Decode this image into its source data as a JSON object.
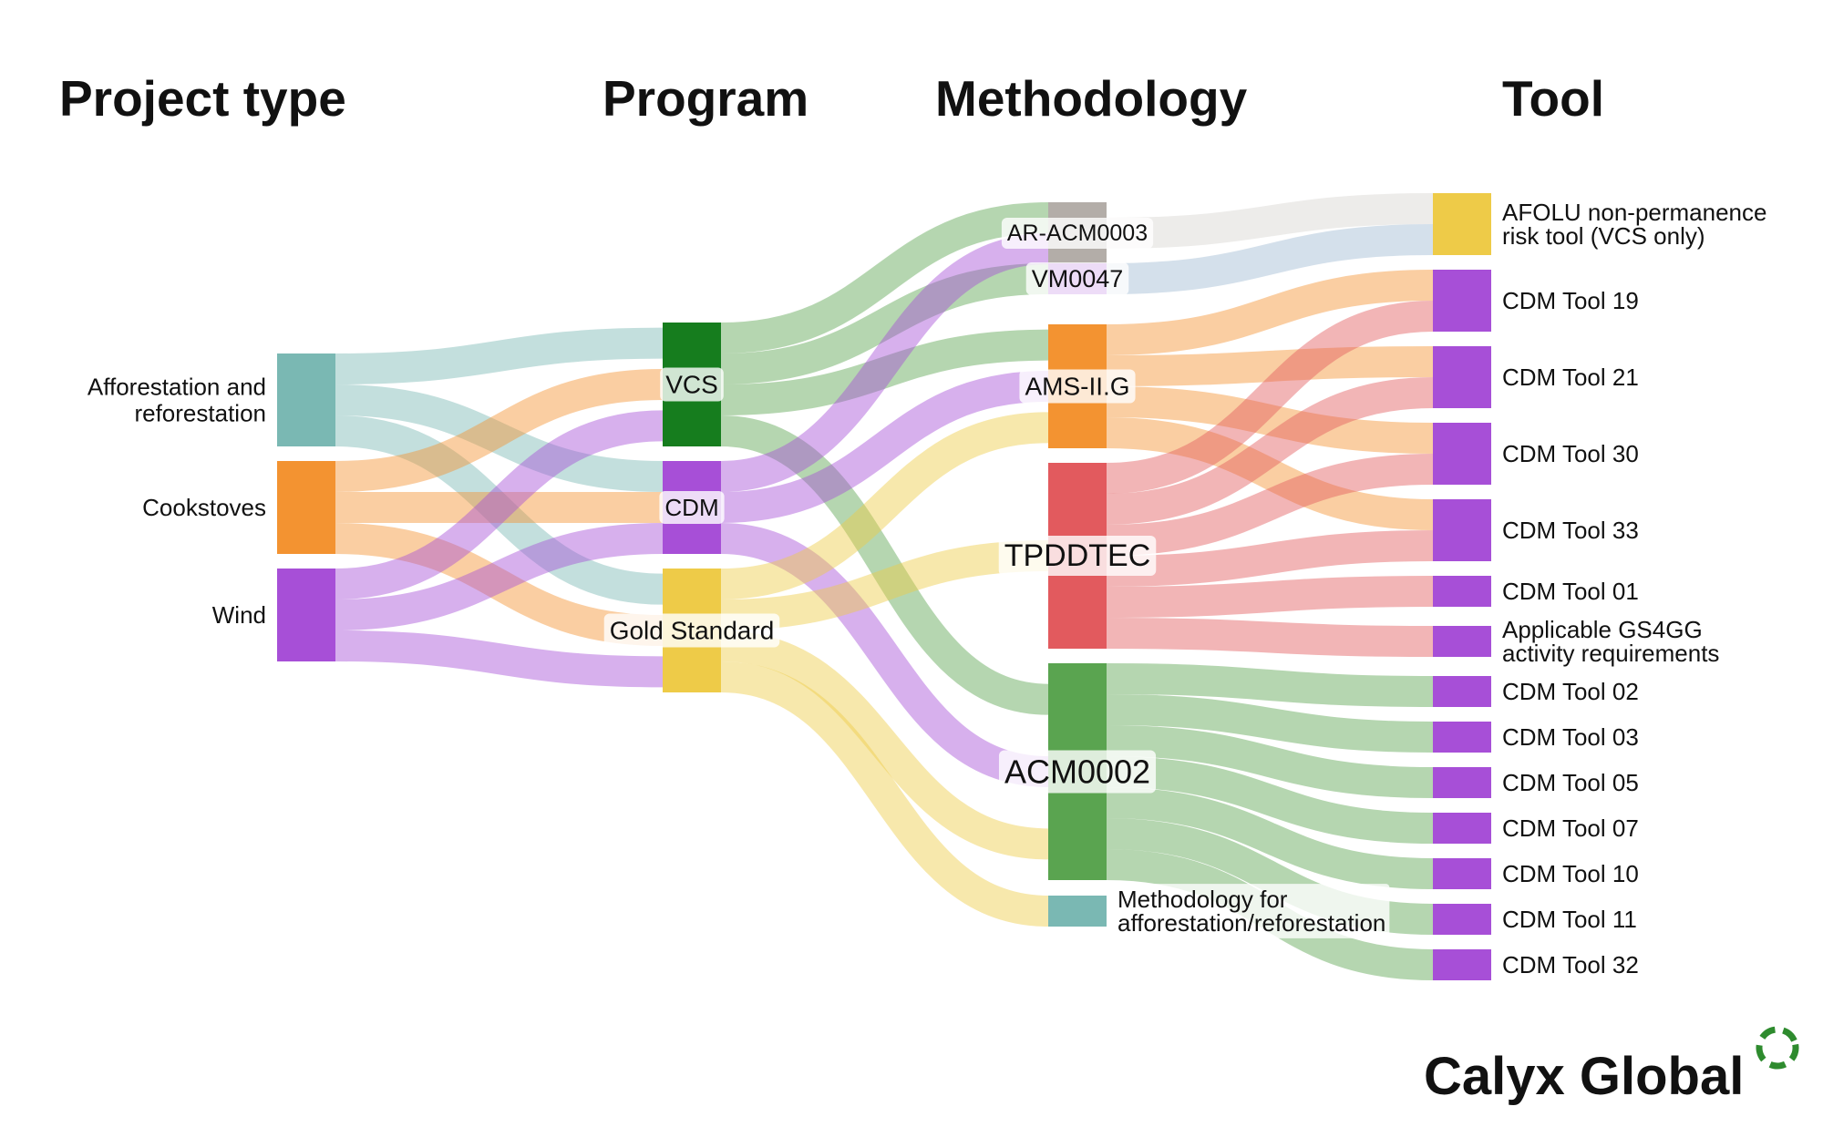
{
  "columns": [
    "Project type",
    "Program",
    "Methodology",
    "Tool"
  ],
  "brand": {
    "name": "Calyx Global",
    "logo_icon": "dashed-circle-logo-icon",
    "logo_color": "#2e8b2e"
  },
  "colors": {
    "teal": "#7ab8b3",
    "orange": "#f39331",
    "purple": "#a74fd7",
    "green_dark": "#167d1e",
    "gold": "#eecb48",
    "gray": "#b3ada8",
    "red": "#e25a5e",
    "green": "#5aa450",
    "link_gray": "#d8d4d1",
    "link_blue": "#9fbad3"
  },
  "chart_data": {
    "type": "sankey",
    "nodes": [
      {
        "id": "aff",
        "label": "Afforestation and reforestation",
        "lines": [
          "Afforestation and",
          "reforestation"
        ],
        "column": 0,
        "color": "#7ab8b3"
      },
      {
        "id": "cook",
        "label": "Cookstoves",
        "lines": [
          "Cookstoves"
        ],
        "column": 0,
        "color": "#f39331"
      },
      {
        "id": "wind",
        "label": "Wind",
        "lines": [
          "Wind"
        ],
        "column": 0,
        "color": "#a74fd7"
      },
      {
        "id": "vcs",
        "label": "VCS",
        "lines": [
          "VCS"
        ],
        "column": 1,
        "color": "#167d1e"
      },
      {
        "id": "cdm",
        "label": "CDM",
        "lines": [
          "CDM"
        ],
        "column": 1,
        "color": "#a74fd7"
      },
      {
        "id": "gs",
        "label": "Gold Standard",
        "lines": [
          "Gold Standard"
        ],
        "column": 1,
        "color": "#eecb48"
      },
      {
        "id": "ar",
        "label": "AR-ACM0003",
        "lines": [
          "AR-ACM0003"
        ],
        "column": 2,
        "color": "#b3ada8"
      },
      {
        "id": "vm",
        "label": "VM0047",
        "lines": [
          "VM0047"
        ],
        "column": 2,
        "color": "#a74fd7"
      },
      {
        "id": "ams",
        "label": "AMS-II.G",
        "lines": [
          "AMS-II.G"
        ],
        "column": 2,
        "color": "#f39331"
      },
      {
        "id": "tpd",
        "label": "TPDDTEC",
        "lines": [
          "TPDDTEC"
        ],
        "column": 2,
        "color": "#e25a5e"
      },
      {
        "id": "acm",
        "label": "ACM0002",
        "lines": [
          "ACM0002"
        ],
        "column": 2,
        "color": "#5aa450"
      },
      {
        "id": "mfa",
        "label": "Methodology for afforestation/reforestation",
        "lines": [
          "Methodology for",
          "afforestation/reforestation"
        ],
        "column": 2,
        "color": "#7ab8b3"
      },
      {
        "id": "afolu",
        "label": "AFOLU non-permanence risk tool (VCS only)",
        "lines": [
          "AFOLU non-permanence",
          "risk tool (VCS only)"
        ],
        "column": 3,
        "color": "#eecb48"
      },
      {
        "id": "t19",
        "label": "CDM Tool 19",
        "lines": [
          "CDM Tool 19"
        ],
        "column": 3,
        "color": "#a74fd7"
      },
      {
        "id": "t21",
        "label": "CDM Tool 21",
        "lines": [
          "CDM Tool 21"
        ],
        "column": 3,
        "color": "#a74fd7"
      },
      {
        "id": "t30",
        "label": "CDM Tool 30",
        "lines": [
          "CDM Tool 30"
        ],
        "column": 3,
        "color": "#a74fd7"
      },
      {
        "id": "t33",
        "label": "CDM Tool 33",
        "lines": [
          "CDM Tool 33"
        ],
        "column": 3,
        "color": "#a74fd7"
      },
      {
        "id": "t01",
        "label": "CDM Tool 01",
        "lines": [
          "CDM Tool 01"
        ],
        "column": 3,
        "color": "#a74fd7"
      },
      {
        "id": "gs4",
        "label": "Applicable GS4GG activity requirements",
        "lines": [
          "Applicable GS4GG",
          "activity requirements"
        ],
        "column": 3,
        "color": "#a74fd7"
      },
      {
        "id": "t02",
        "label": "CDM Tool 02",
        "lines": [
          "CDM Tool 02"
        ],
        "column": 3,
        "color": "#a74fd7"
      },
      {
        "id": "t03",
        "label": "CDM Tool 03",
        "lines": [
          "CDM Tool 03"
        ],
        "column": 3,
        "color": "#a74fd7"
      },
      {
        "id": "t05",
        "label": "CDM Tool 05",
        "lines": [
          "CDM Tool 05"
        ],
        "column": 3,
        "color": "#a74fd7"
      },
      {
        "id": "t07",
        "label": "CDM Tool 07",
        "lines": [
          "CDM Tool 07"
        ],
        "column": 3,
        "color": "#a74fd7"
      },
      {
        "id": "t10",
        "label": "CDM Tool 10",
        "lines": [
          "CDM Tool 10"
        ],
        "column": 3,
        "color": "#a74fd7"
      },
      {
        "id": "t11",
        "label": "CDM Tool 11",
        "lines": [
          "CDM Tool 11"
        ],
        "column": 3,
        "color": "#a74fd7"
      },
      {
        "id": "t32",
        "label": "CDM Tool 32",
        "lines": [
          "CDM Tool 32"
        ],
        "column": 3,
        "color": "#a74fd7"
      }
    ],
    "links": [
      {
        "source": "aff",
        "target": "vcs",
        "value": 1,
        "color": "#7ab8b3"
      },
      {
        "source": "aff",
        "target": "cdm",
        "value": 1,
        "color": "#7ab8b3"
      },
      {
        "source": "aff",
        "target": "gs",
        "value": 1,
        "color": "#7ab8b3"
      },
      {
        "source": "cook",
        "target": "vcs",
        "value": 1,
        "color": "#f39331"
      },
      {
        "source": "cook",
        "target": "cdm",
        "value": 1,
        "color": "#f39331"
      },
      {
        "source": "cook",
        "target": "gs",
        "value": 1,
        "color": "#f39331"
      },
      {
        "source": "wind",
        "target": "vcs",
        "value": 1,
        "color": "#a74fd7"
      },
      {
        "source": "wind",
        "target": "cdm",
        "value": 1,
        "color": "#a74fd7"
      },
      {
        "source": "wind",
        "target": "gs",
        "value": 1,
        "color": "#a74fd7"
      },
      {
        "source": "vcs",
        "target": "ar",
        "value": 1,
        "color": "#5aa450"
      },
      {
        "source": "vcs",
        "target": "vm",
        "value": 1,
        "color": "#5aa450"
      },
      {
        "source": "vcs",
        "target": "ams",
        "value": 1,
        "color": "#5aa450"
      },
      {
        "source": "vcs",
        "target": "acm",
        "value": 1,
        "color": "#5aa450"
      },
      {
        "source": "cdm",
        "target": "ar",
        "value": 1,
        "color": "#a74fd7"
      },
      {
        "source": "cdm",
        "target": "ams",
        "value": 1,
        "color": "#a74fd7"
      },
      {
        "source": "cdm",
        "target": "acm",
        "value": 1,
        "color": "#a74fd7"
      },
      {
        "source": "gs",
        "target": "ams",
        "value": 1,
        "color": "#eecb48"
      },
      {
        "source": "gs",
        "target": "tpd",
        "value": 1,
        "color": "#eecb48"
      },
      {
        "source": "gs",
        "target": "acm",
        "value": 1,
        "color": "#eecb48"
      },
      {
        "source": "gs",
        "target": "mfa",
        "value": 1,
        "color": "#eecb48"
      },
      {
        "source": "ar",
        "target": "afolu",
        "value": 1,
        "color": "#d8d4d1"
      },
      {
        "source": "vm",
        "target": "afolu",
        "value": 1,
        "color": "#9fbad3"
      },
      {
        "source": "ams",
        "target": "t19",
        "value": 1,
        "color": "#f39331"
      },
      {
        "source": "ams",
        "target": "t21",
        "value": 1,
        "color": "#f39331"
      },
      {
        "source": "ams",
        "target": "t30",
        "value": 1,
        "color": "#f39331"
      },
      {
        "source": "ams",
        "target": "t33",
        "value": 1,
        "color": "#f39331"
      },
      {
        "source": "tpd",
        "target": "t19",
        "value": 1,
        "color": "#e25a5e"
      },
      {
        "source": "tpd",
        "target": "t21",
        "value": 1,
        "color": "#e25a5e"
      },
      {
        "source": "tpd",
        "target": "t30",
        "value": 1,
        "color": "#e25a5e"
      },
      {
        "source": "tpd",
        "target": "t33",
        "value": 1,
        "color": "#e25a5e"
      },
      {
        "source": "tpd",
        "target": "t01",
        "value": 1,
        "color": "#e25a5e"
      },
      {
        "source": "tpd",
        "target": "gs4",
        "value": 1,
        "color": "#e25a5e"
      },
      {
        "source": "acm",
        "target": "t02",
        "value": 1,
        "color": "#5aa450"
      },
      {
        "source": "acm",
        "target": "t03",
        "value": 1,
        "color": "#5aa450"
      },
      {
        "source": "acm",
        "target": "t05",
        "value": 1,
        "color": "#5aa450"
      },
      {
        "source": "acm",
        "target": "t07",
        "value": 1,
        "color": "#5aa450"
      },
      {
        "source": "acm",
        "target": "t10",
        "value": 1,
        "color": "#5aa450"
      },
      {
        "source": "acm",
        "target": "t11",
        "value": 1,
        "color": "#5aa450"
      },
      {
        "source": "acm",
        "target": "t32",
        "value": 1,
        "color": "#5aa450"
      }
    ]
  }
}
